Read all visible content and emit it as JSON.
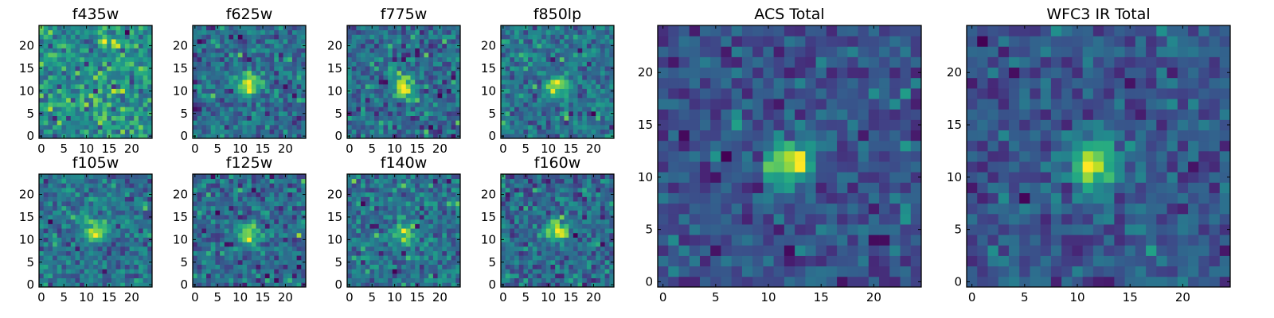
{
  "colors": {
    "colormap": "viridis",
    "low": "#440154",
    "mid": "#21918c",
    "high": "#fde725"
  },
  "chart_data": [
    {
      "type": "heatmap",
      "title": "f435w",
      "grid": [
        25,
        25
      ],
      "xlim": [
        0,
        24
      ],
      "ylim": [
        0,
        24
      ],
      "xticks": [
        0,
        5,
        10,
        15,
        20
      ],
      "yticks": [
        0,
        5,
        10,
        15,
        20
      ],
      "source_center": null,
      "noise": 0.5,
      "seed": 11,
      "colormap": "viridis"
    },
    {
      "type": "heatmap",
      "title": "f625w",
      "grid": [
        25,
        25
      ],
      "xlim": [
        0,
        24
      ],
      "ylim": [
        0,
        24
      ],
      "xticks": [
        0,
        5,
        10,
        15,
        20
      ],
      "yticks": [
        0,
        5,
        10,
        15,
        20
      ],
      "source_center": [
        12,
        11.5
      ],
      "noise": 0.45,
      "seed": 23,
      "colormap": "viridis"
    },
    {
      "type": "heatmap",
      "title": "f775w",
      "grid": [
        25,
        25
      ],
      "xlim": [
        0,
        24
      ],
      "ylim": [
        0,
        24
      ],
      "xticks": [
        0,
        5,
        10,
        15,
        20
      ],
      "yticks": [
        0,
        5,
        10,
        15,
        20
      ],
      "source_center": [
        12,
        11
      ],
      "noise": 0.45,
      "seed": 37,
      "colormap": "viridis"
    },
    {
      "type": "heatmap",
      "title": "f850lp",
      "grid": [
        25,
        25
      ],
      "xlim": [
        0,
        24
      ],
      "ylim": [
        0,
        24
      ],
      "xticks": [
        0,
        5,
        10,
        15,
        20
      ],
      "yticks": [
        0,
        5,
        10,
        15,
        20
      ],
      "source_center": [
        12,
        11
      ],
      "noise": 0.5,
      "seed": 41,
      "colormap": "viridis"
    },
    {
      "type": "heatmap",
      "title": "f105w",
      "grid": [
        25,
        25
      ],
      "xlim": [
        0,
        24
      ],
      "ylim": [
        0,
        24
      ],
      "xticks": [
        0,
        5,
        10,
        15,
        20
      ],
      "yticks": [
        0,
        5,
        10,
        15,
        20
      ],
      "source_center": [
        12,
        12
      ],
      "noise": 0.4,
      "seed": 53,
      "colormap": "viridis"
    },
    {
      "type": "heatmap",
      "title": "f125w",
      "grid": [
        25,
        25
      ],
      "xlim": [
        0,
        24
      ],
      "ylim": [
        0,
        24
      ],
      "xticks": [
        0,
        5,
        10,
        15,
        20
      ],
      "yticks": [
        0,
        5,
        10,
        15,
        20
      ],
      "source_center": [
        12,
        11
      ],
      "noise": 0.45,
      "seed": 67,
      "colormap": "viridis"
    },
    {
      "type": "heatmap",
      "title": "f140w",
      "grid": [
        25,
        25
      ],
      "xlim": [
        0,
        24
      ],
      "ylim": [
        0,
        24
      ],
      "xticks": [
        0,
        5,
        10,
        15,
        20
      ],
      "yticks": [
        0,
        5,
        10,
        15,
        20
      ],
      "source_center": [
        12,
        11
      ],
      "noise": 0.45,
      "seed": 71,
      "colormap": "viridis"
    },
    {
      "type": "heatmap",
      "title": "f160w",
      "grid": [
        25,
        25
      ],
      "xlim": [
        0,
        24
      ],
      "ylim": [
        0,
        24
      ],
      "xticks": [
        0,
        5,
        10,
        15,
        20
      ],
      "yticks": [
        0,
        5,
        10,
        15,
        20
      ],
      "source_center": [
        12,
        12
      ],
      "noise": 0.45,
      "seed": 83,
      "colormap": "viridis"
    },
    {
      "type": "heatmap",
      "title": "ACS Total",
      "grid": [
        25,
        25
      ],
      "xlim": [
        0,
        24
      ],
      "ylim": [
        0,
        24
      ],
      "xticks": [
        0,
        5,
        10,
        15,
        20
      ],
      "yticks": [
        0,
        5,
        10,
        15,
        20
      ],
      "source_center": [
        12,
        11.5
      ],
      "noise": 0.3,
      "seed": 97,
      "colormap": "viridis"
    },
    {
      "type": "heatmap",
      "title": "WFC3 IR Total",
      "grid": [
        25,
        25
      ],
      "xlim": [
        0,
        24
      ],
      "ylim": [
        0,
        24
      ],
      "xticks": [
        0,
        5,
        10,
        15,
        20
      ],
      "yticks": [
        0,
        5,
        10,
        15,
        20
      ],
      "source_center": [
        11.5,
        11.5
      ],
      "noise": 0.3,
      "seed": 101,
      "colormap": "viridis"
    }
  ]
}
